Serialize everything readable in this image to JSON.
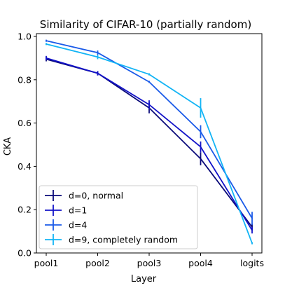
{
  "chart_data": {
    "type": "line",
    "title": "Similarity of CIFAR-10 (partially random)",
    "xlabel": "Layer",
    "ylabel": "CKA",
    "categories": [
      "pool1",
      "pool2",
      "pool3",
      "pool4",
      "logits"
    ],
    "ylim": [
      0.0,
      1.0
    ],
    "yticks": [
      0.0,
      0.2,
      0.4,
      0.6,
      0.8,
      1.0
    ],
    "ytick_labels": [
      "0.0",
      "0.2",
      "0.4",
      "0.6",
      "0.8",
      "1.0"
    ],
    "grid": false,
    "legend_position": "lower-left",
    "series": [
      {
        "name": "d=0, normal",
        "color": "#0a0a7a",
        "values": [
          0.895,
          0.83,
          0.67,
          0.435,
          0.12
        ],
        "errors": [
          0.01,
          0.01,
          0.025,
          0.03,
          0.015
        ]
      },
      {
        "name": "d=1",
        "color": "#1212c8",
        "values": [
          0.9,
          0.83,
          0.685,
          0.49,
          0.105
        ],
        "errors": [
          0.01,
          0.01,
          0.02,
          0.025,
          0.015
        ]
      },
      {
        "name": "d=4",
        "color": "#1a5ae8",
        "values": [
          0.98,
          0.925,
          0.79,
          0.56,
          0.16
        ],
        "errors": [
          0.005,
          0.01,
          0.005,
          0.03,
          0.03
        ]
      },
      {
        "name": "d=9, completely random",
        "color": "#12b4f5",
        "values": [
          0.965,
          0.905,
          0.825,
          0.67,
          0.045
        ],
        "errors": [
          0.005,
          0.01,
          0.005,
          0.045,
          0.005
        ]
      }
    ]
  }
}
